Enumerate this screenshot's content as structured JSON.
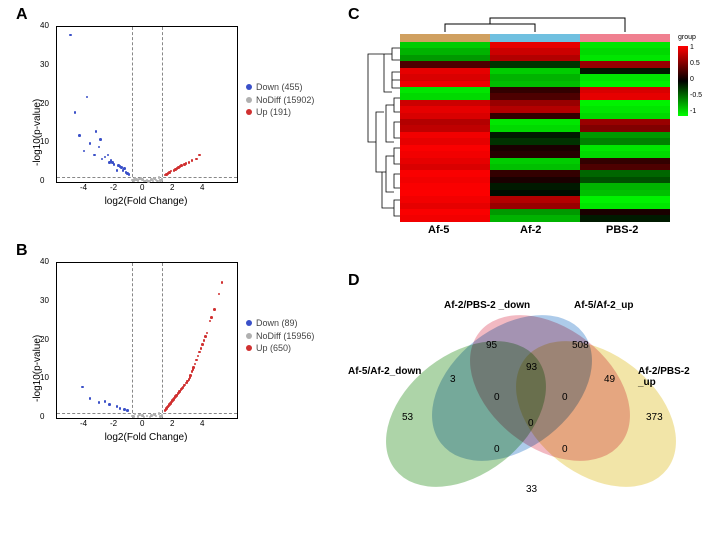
{
  "panels": {
    "A": "A",
    "B": "B",
    "C": "C",
    "D": "D"
  },
  "volcanoA": {
    "type": "scatter",
    "xlabel": "log2(Fold Change)",
    "ylabel": "-log10(p-value)",
    "xlim": [
      -6,
      6
    ],
    "ylim": [
      0,
      40
    ],
    "xticks": [
      -4,
      -2,
      0,
      2,
      4
    ],
    "yticks": [
      0,
      10,
      20,
      30,
      40
    ],
    "vlines": [
      -1,
      1
    ],
    "hline_y": 1.3,
    "legend": {
      "down": {
        "label": "Down (455)",
        "color": "#3a50c8"
      },
      "nodiff": {
        "label": "NoDiff (15902)",
        "color": "#b0b0b0"
      },
      "up": {
        "label": "Up (191)",
        "color": "#d03030"
      }
    },
    "colors": {
      "down": "#3a50c8",
      "nodiff": "#b0b0b0",
      "up": "#d03030"
    },
    "points_down": [
      [
        -4.5,
        12
      ],
      [
        -3.8,
        10
      ],
      [
        -4.2,
        8
      ],
      [
        -3.5,
        7
      ],
      [
        -3.0,
        6
      ],
      [
        -2.5,
        5
      ],
      [
        -2.8,
        6.5
      ],
      [
        -2.2,
        4.5
      ],
      [
        -1.8,
        4
      ],
      [
        -1.5,
        3.5
      ],
      [
        -3.2,
        9
      ],
      [
        -2.0,
        3
      ],
      [
        -1.4,
        2.5
      ],
      [
        -1.6,
        3
      ],
      [
        -4.8,
        18
      ],
      [
        -3.4,
        13
      ],
      [
        -2.6,
        7
      ],
      [
        -2.4,
        5.5
      ],
      [
        -1.9,
        4.2
      ],
      [
        -1.3,
        2.2
      ],
      [
        -5.1,
        38
      ],
      [
        -4.0,
        22
      ],
      [
        -3.1,
        11
      ],
      [
        -2.3,
        5
      ],
      [
        -1.7,
        3.8
      ],
      [
        -1.2,
        2
      ]
    ],
    "points_up": [
      [
        1.3,
        2
      ],
      [
        1.5,
        2.5
      ],
      [
        1.8,
        3
      ],
      [
        2.0,
        3.5
      ],
      [
        2.2,
        4
      ],
      [
        2.5,
        4.5
      ],
      [
        2.8,
        5
      ],
      [
        3.0,
        5.5
      ],
      [
        3.3,
        6
      ],
      [
        1.4,
        2.2
      ],
      [
        1.6,
        2.8
      ],
      [
        1.9,
        3.2
      ],
      [
        2.3,
        4.2
      ],
      [
        2.6,
        4.8
      ],
      [
        3.5,
        7
      ],
      [
        1.2,
        1.8
      ],
      [
        2.1,
        3.8
      ]
    ],
    "points_nodiff": [
      [
        -0.8,
        1
      ],
      [
        -0.5,
        0.8
      ],
      [
        -0.3,
        0.6
      ],
      [
        0,
        0.5
      ],
      [
        0.3,
        0.7
      ],
      [
        0.5,
        0.9
      ],
      [
        0.8,
        1.1
      ],
      [
        -1.0,
        0.5
      ],
      [
        1.0,
        0.6
      ],
      [
        -0.6,
        0.4
      ],
      [
        0.6,
        0.5
      ],
      [
        0.2,
        0.3
      ],
      [
        -0.2,
        0.3
      ],
      [
        0.9,
        0.4
      ],
      [
        -0.9,
        0.4
      ],
      [
        1.0,
        0.8
      ],
      [
        -0.4,
        0.9
      ],
      [
        0.4,
        0.2
      ],
      [
        -0.7,
        0.6
      ],
      [
        0.7,
        0.3
      ],
      [
        0.1,
        0.1
      ],
      [
        -0.1,
        0.2
      ],
      [
        -0.85,
        0.7
      ],
      [
        0.85,
        0.55
      ]
    ]
  },
  "volcanoB": {
    "type": "scatter",
    "xlabel": "log2(Fold Change)",
    "ylabel": "-log10(p-value)",
    "xlim": [
      -6,
      6
    ],
    "ylim": [
      0,
      40
    ],
    "xticks": [
      -4,
      -2,
      0,
      2,
      4
    ],
    "yticks": [
      0,
      10,
      20,
      30,
      40
    ],
    "vlines": [
      -1,
      1
    ],
    "hline_y": 1.3,
    "legend": {
      "down": {
        "label": "Down (89)",
        "color": "#3a50c8"
      },
      "nodiff": {
        "label": "NoDiff (15956)",
        "color": "#b0b0b0"
      },
      "up": {
        "label": "Up (650)",
        "color": "#d03030"
      }
    },
    "colors": {
      "down": "#3a50c8",
      "nodiff": "#b0b0b0",
      "up": "#d03030"
    },
    "points_down": [
      [
        -3.8,
        5
      ],
      [
        -3.2,
        4
      ],
      [
        -2.5,
        3.5
      ],
      [
        -2.0,
        3
      ],
      [
        -1.8,
        2.5
      ],
      [
        -1.5,
        2.2
      ],
      [
        -4.3,
        8
      ],
      [
        -2.8,
        4.2
      ],
      [
        -1.3,
        2
      ]
    ],
    "points_up": [
      [
        1.2,
        2
      ],
      [
        1.4,
        3
      ],
      [
        1.6,
        4
      ],
      [
        1.8,
        5
      ],
      [
        2.0,
        6
      ],
      [
        2.2,
        7
      ],
      [
        2.4,
        8
      ],
      [
        2.6,
        9
      ],
      [
        2.8,
        10
      ],
      [
        3.0,
        12
      ],
      [
        3.2,
        14
      ],
      [
        3.4,
        16
      ],
      [
        3.6,
        18
      ],
      [
        3.8,
        20
      ],
      [
        4.0,
        22
      ],
      [
        4.2,
        25
      ],
      [
        4.5,
        28
      ],
      [
        4.8,
        32
      ],
      [
        5.0,
        35
      ],
      [
        1.3,
        2.5
      ],
      [
        1.5,
        3.5
      ],
      [
        1.7,
        4.5
      ],
      [
        1.9,
        5.5
      ],
      [
        2.1,
        6.5
      ],
      [
        2.3,
        7.5
      ],
      [
        2.5,
        8.5
      ],
      [
        2.7,
        9.5
      ],
      [
        2.9,
        11
      ],
      [
        3.1,
        13
      ],
      [
        3.3,
        15
      ],
      [
        3.5,
        17
      ],
      [
        1.25,
        2.2
      ],
      [
        1.45,
        3.2
      ],
      [
        1.65,
        4.2
      ],
      [
        1.85,
        5.2
      ],
      [
        2.05,
        6.2
      ],
      [
        2.25,
        7.2
      ],
      [
        2.45,
        8.2
      ],
      [
        2.65,
        9.2
      ],
      [
        2.85,
        10.5
      ],
      [
        3.05,
        12.5
      ],
      [
        1.35,
        2.8
      ],
      [
        1.55,
        3.8
      ],
      [
        1.75,
        4.8
      ],
      [
        1.95,
        5.8
      ],
      [
        2.15,
        6.8
      ],
      [
        2.35,
        7.8
      ],
      [
        3.7,
        19
      ],
      [
        3.9,
        21
      ],
      [
        4.3,
        26
      ]
    ],
    "points_nodiff": [
      [
        -0.8,
        1
      ],
      [
        -0.5,
        0.8
      ],
      [
        -0.3,
        0.6
      ],
      [
        0,
        0.5
      ],
      [
        0.3,
        0.7
      ],
      [
        0.5,
        0.9
      ],
      [
        0.8,
        1.1
      ],
      [
        -1.0,
        0.5
      ],
      [
        1.0,
        0.6
      ],
      [
        -0.6,
        0.4
      ],
      [
        0.6,
        0.5
      ],
      [
        0.2,
        0.3
      ],
      [
        -0.2,
        0.3
      ],
      [
        0.9,
        0.4
      ],
      [
        -0.9,
        0.4
      ]
    ]
  },
  "heatmap": {
    "type": "heatmap",
    "columns": [
      "Af-5",
      "Af-2",
      "PBS-2"
    ],
    "column_bar_colors": [
      "#d0a060",
      "#70c0e0",
      "#f08090"
    ],
    "colorbar_label": "group",
    "colorbar_range": [
      -1,
      1
    ],
    "colorbar_ticks": [
      1,
      0.5,
      0,
      -0.5,
      -1
    ],
    "rows": [
      [
        -0.8,
        0.9,
        -0.9
      ],
      [
        -0.7,
        0.8,
        -0.85
      ],
      [
        -0.6,
        0.7,
        -0.9
      ],
      [
        0.3,
        -0.2,
        0.6
      ],
      [
        0.9,
        -0.8,
        -0.1
      ],
      [
        0.85,
        -0.7,
        -0.9
      ],
      [
        0.95,
        -0.75,
        -0.95
      ],
      [
        -0.9,
        0.2,
        0.85
      ],
      [
        -0.85,
        0.3,
        0.9
      ],
      [
        0.8,
        0.6,
        -0.95
      ],
      [
        0.9,
        0.7,
        -0.9
      ],
      [
        0.85,
        0.2,
        -0.85
      ],
      [
        0.7,
        -0.9,
        0.6
      ],
      [
        0.75,
        -0.85,
        0.5
      ],
      [
        0.95,
        -0.1,
        -0.6
      ],
      [
        0.9,
        -0.2,
        -0.5
      ],
      [
        0.98,
        0.1,
        -0.9
      ],
      [
        0.95,
        0.15,
        -0.85
      ],
      [
        0.9,
        -0.8,
        0.2
      ],
      [
        0.85,
        -0.75,
        0.3
      ],
      [
        0.98,
        0.2,
        -0.4
      ],
      [
        0.95,
        0.1,
        -0.3
      ],
      [
        0.98,
        -0.1,
        -0.7
      ],
      [
        0.99,
        -0.05,
        -0.75
      ],
      [
        0.95,
        0.7,
        -0.95
      ],
      [
        0.9,
        0.6,
        -0.9
      ],
      [
        0.98,
        -0.6,
        0.1
      ],
      [
        0.95,
        -0.7,
        -0.1
      ]
    ]
  },
  "venn": {
    "type": "venn",
    "sets": {
      "af5af2_down": {
        "label": "Af-5/Af-2_down",
        "color": "#6ab060"
      },
      "af2pbs2_down": {
        "label": "Af-2/PBS-2 _down",
        "color": "#6aa0d8"
      },
      "af5af2_up": {
        "label": "Af-5/Af-2_up",
        "color": "#e88090"
      },
      "af2pbs2_up": {
        "label": "Af-2/PBS-2 _up",
        "color": "#e8d060"
      }
    },
    "counts": {
      "a_only": 53,
      "b_only": 95,
      "c_only": 508,
      "d_only": 373,
      "ab": 3,
      "bc": 93,
      "cd": 49,
      "ad": 33,
      "abc": 0,
      "bcd": 0,
      "acd": 0,
      "abd": 0,
      "abcd": 0
    }
  }
}
